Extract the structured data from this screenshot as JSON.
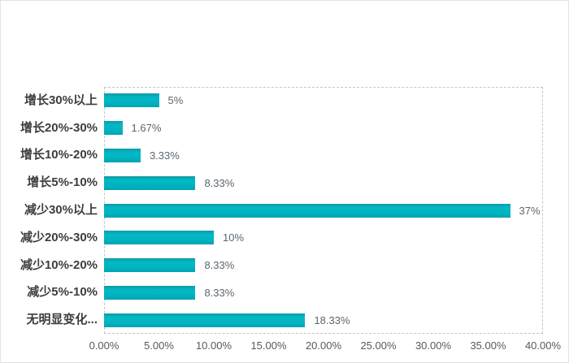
{
  "chart_data": {
    "type": "bar",
    "orientation": "horizontal",
    "title": "",
    "categories": [
      "增长30%以上",
      "增长20%-30%",
      "增长10%-20%",
      "增长5%-10%",
      "减少30%以上",
      "减少20%-30%",
      "减少10%-20%",
      "减少5%-10%",
      "无明显变化..."
    ],
    "values": [
      5,
      1.67,
      3.33,
      8.33,
      37,
      10,
      8.33,
      8.33,
      18.33
    ],
    "data_labels": [
      "5%",
      "1.67%",
      "3.33%",
      "8.33%",
      "37%",
      "10%",
      "8.33%",
      "8.33%",
      "18.33%"
    ],
    "x_ticks": [
      "0.00%",
      "5.00%",
      "10.00%",
      "15.00%",
      "20.00%",
      "25.00%",
      "30.00%",
      "35.00%",
      "40.00%"
    ],
    "xlim": [
      0,
      40
    ],
    "legend": "none",
    "grid": "dashed rectangular plot border only, no inner gridlines",
    "colors": {
      "bar": "#00aebb",
      "bar_gradient_top": "#1199a7",
      "bar_gradient_mid": "#00bac6",
      "bar_gradient_bottom": "#00a3b1",
      "category_label": "#3d3d3d",
      "data_label": "#5b6670",
      "axis_label": "#595959",
      "plot_border": "#c5c5c5",
      "canvas_border": "#e3e3e3",
      "background": "#ffffff"
    }
  }
}
